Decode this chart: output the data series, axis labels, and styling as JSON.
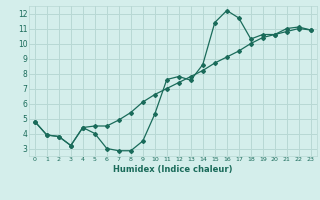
{
  "xlabel": "Humidex (Indice chaleur)",
  "ylabel": "",
  "background_color": "#d4eeeb",
  "grid_color": "#b8d8d4",
  "line_color": "#1a6b5a",
  "xlim": [
    -0.5,
    23.5
  ],
  "ylim": [
    2.5,
    12.5
  ],
  "xticks": [
    0,
    1,
    2,
    3,
    4,
    5,
    6,
    7,
    8,
    9,
    10,
    11,
    12,
    13,
    14,
    15,
    16,
    17,
    18,
    19,
    20,
    21,
    22,
    23
  ],
  "yticks": [
    3,
    4,
    5,
    6,
    7,
    8,
    9,
    10,
    11,
    12
  ],
  "curve1_x": [
    0,
    1,
    2,
    3,
    4,
    5,
    6,
    7,
    8,
    9,
    10,
    11,
    12,
    13,
    14,
    15,
    16,
    17,
    18,
    19,
    20,
    21,
    22,
    23
  ],
  "curve1_y": [
    4.8,
    3.9,
    3.8,
    3.2,
    4.4,
    4.0,
    3.0,
    2.85,
    2.85,
    3.5,
    5.3,
    7.6,
    7.8,
    7.55,
    8.6,
    11.4,
    12.2,
    11.7,
    10.3,
    10.6,
    10.6,
    11.0,
    11.1,
    10.9
  ],
  "curve2_x": [
    0,
    1,
    2,
    3,
    4,
    5,
    6,
    7,
    8,
    9,
    10,
    11,
    12,
    13,
    14,
    15,
    16,
    17,
    18,
    19,
    20,
    21,
    22,
    23
  ],
  "curve2_y": [
    4.8,
    3.9,
    3.8,
    3.2,
    4.4,
    4.5,
    4.5,
    4.9,
    5.4,
    6.1,
    6.6,
    7.0,
    7.4,
    7.8,
    8.2,
    8.7,
    9.1,
    9.5,
    10.0,
    10.4,
    10.6,
    10.8,
    11.0,
    10.9
  ]
}
